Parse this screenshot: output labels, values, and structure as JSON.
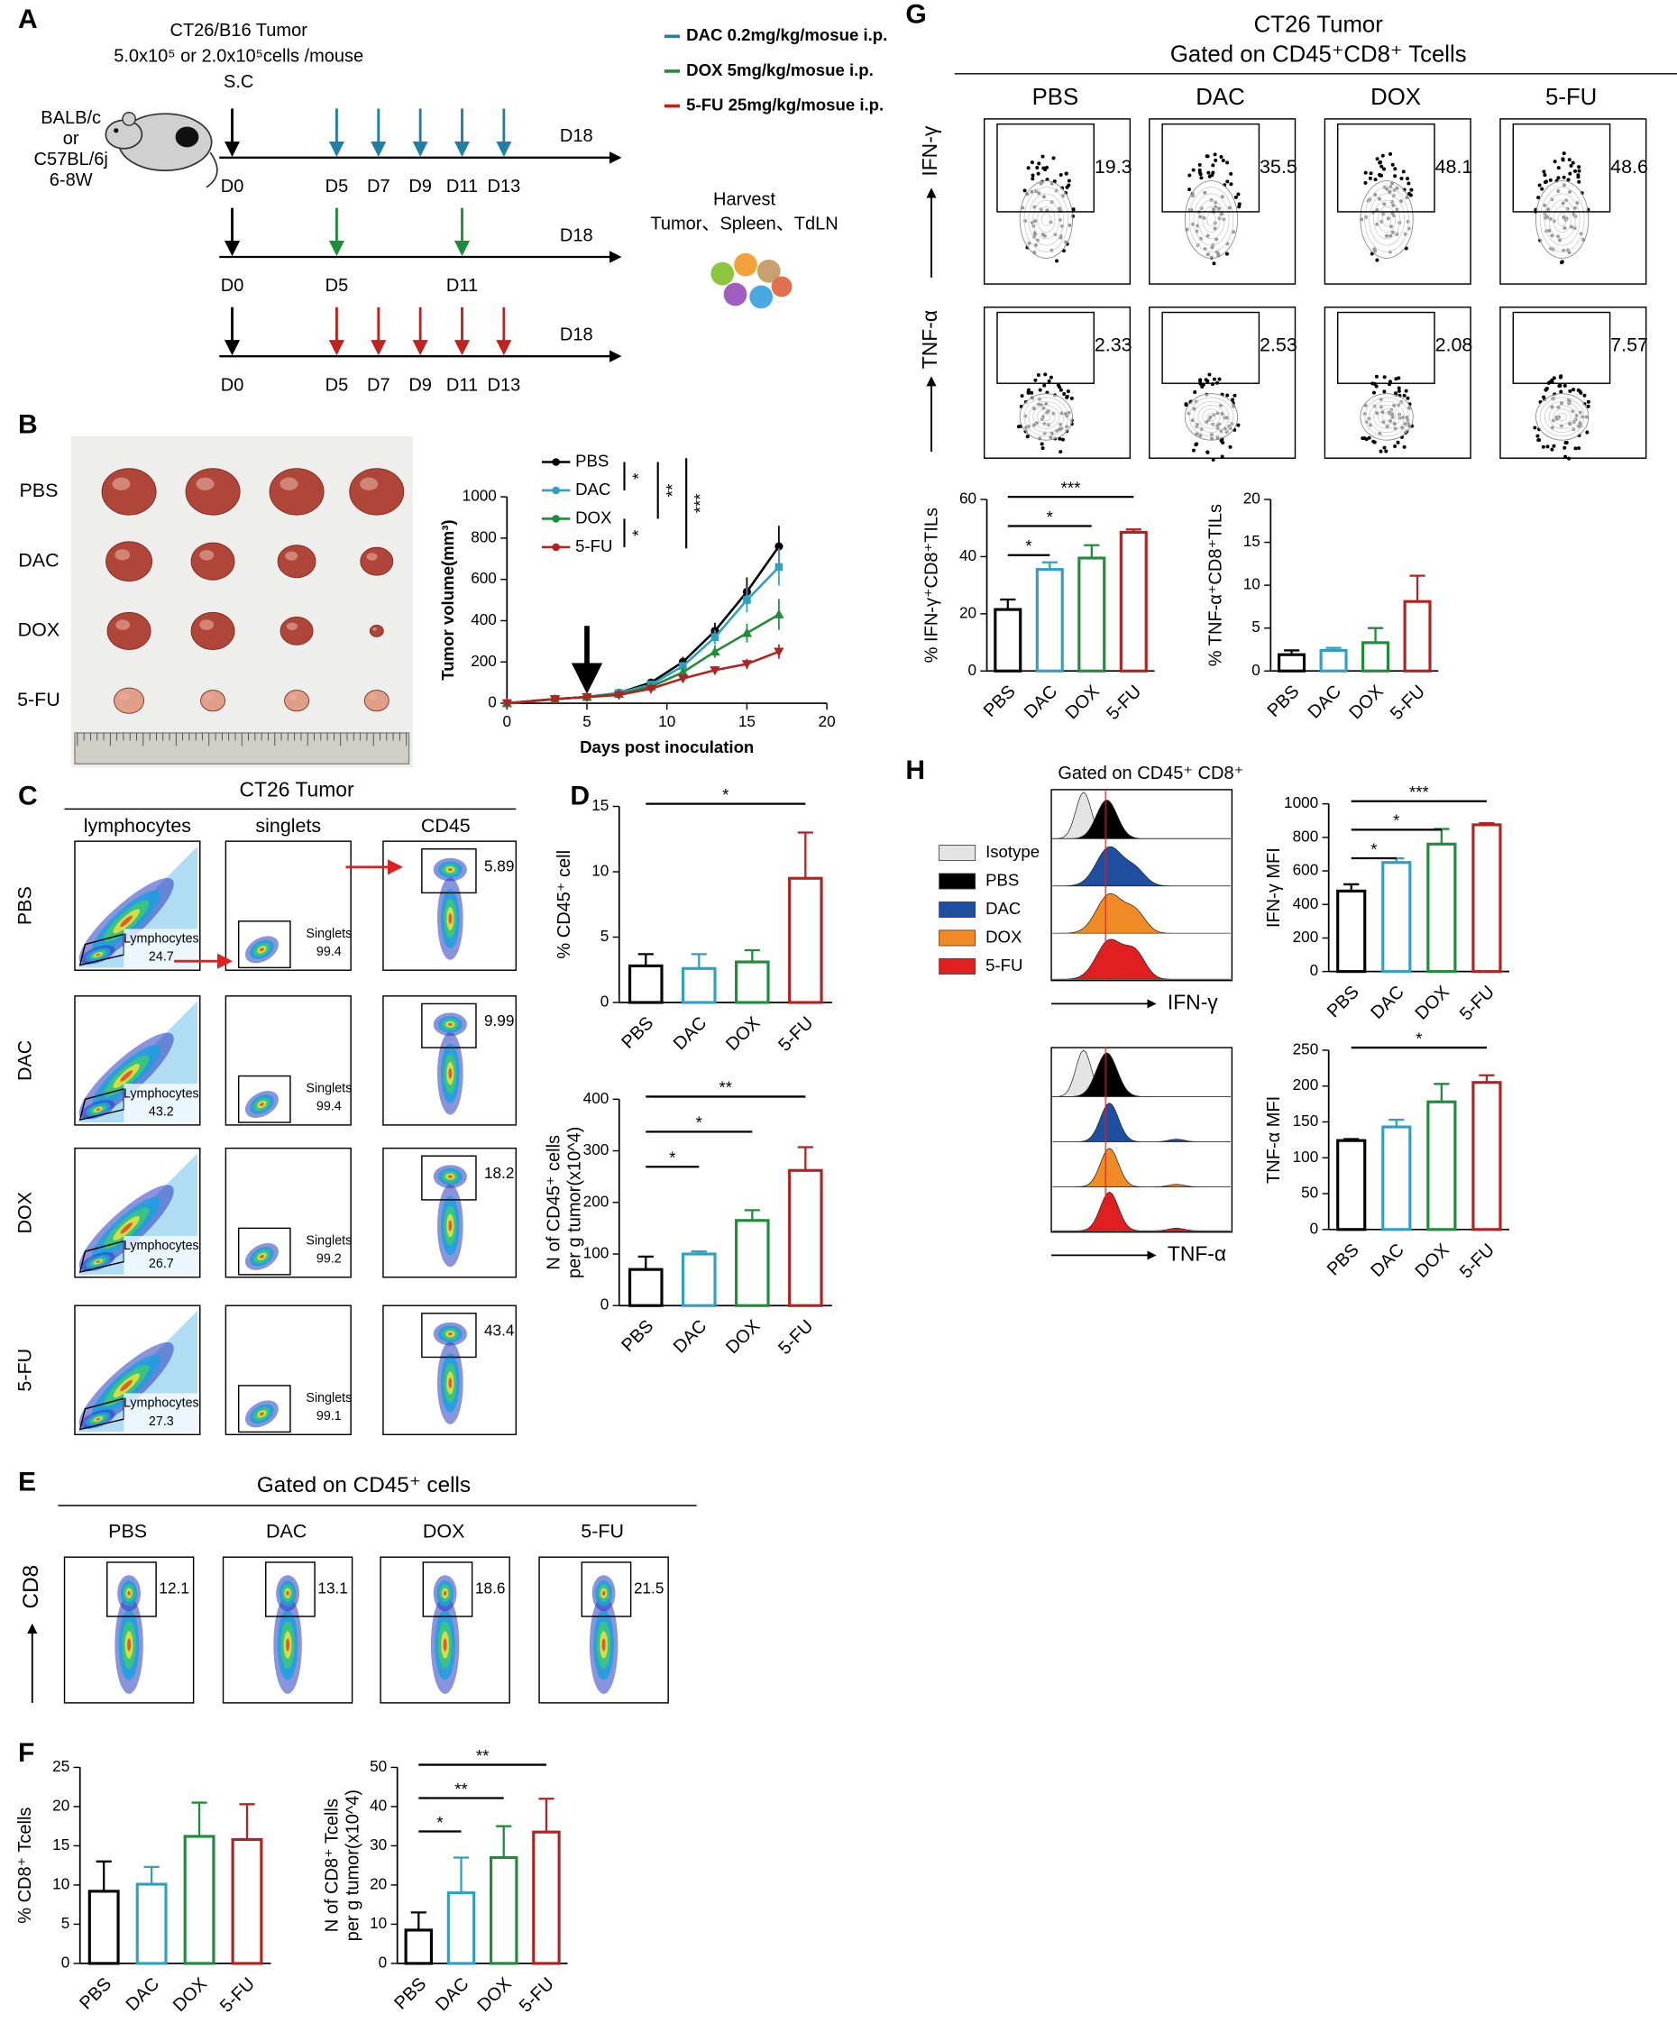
{
  "panel_labels": [
    "A",
    "B",
    "C",
    "D",
    "E",
    "F",
    "G",
    "H"
  ],
  "schema": {
    "tumor_lines": [
      "CT26/B16 Tumor",
      "5.0x10⁵ or 2.0x10⁵cells /mouse",
      "S.C"
    ],
    "strain_lines": [
      "BALB/c",
      "or",
      "C57BL/6j",
      "6-8W"
    ],
    "regimens": [
      {
        "name": "DAC 0.2mg/kg/mosue i.p.",
        "color": "#1f7fa6",
        "days": [
          {
            "value": 0,
            "label": "D0"
          },
          {
            "value": 5,
            "label": "D5"
          },
          {
            "value": 7,
            "label": "D7"
          },
          {
            "value": 9,
            "label": "D9"
          },
          {
            "value": 11,
            "label": "D11"
          },
          {
            "value": 13,
            "label": "D13"
          }
        ],
        "end": {
          "value": 18,
          "label": "D18"
        }
      },
      {
        "name": "DOX 5mg/kg/mosue i.p.",
        "color": "#1e8c3a",
        "days": [
          {
            "value": 0,
            "label": "D0"
          },
          {
            "value": 5,
            "label": "D5"
          },
          {
            "value": 11,
            "label": "D11"
          }
        ],
        "end": {
          "value": 18,
          "label": "D18"
        }
      },
      {
        "name": "5-FU 25mg/kg/mosue i.p.",
        "color": "#c0221e",
        "days": [
          {
            "value": 0,
            "label": "D0"
          },
          {
            "value": 5,
            "label": "D5"
          },
          {
            "value": 7,
            "label": "D7"
          },
          {
            "value": 9,
            "label": "D9"
          },
          {
            "value": 11,
            "label": "D11"
          },
          {
            "value": 13,
            "label": "D13"
          }
        ],
        "end": {
          "value": 18,
          "label": "D18"
        }
      }
    ],
    "harvest": [
      "Harvest",
      "Tumor、Spleen、TdLN"
    ]
  },
  "photo": {
    "groups": [
      "PBS",
      "DAC",
      "DOX",
      "5-FU"
    ]
  },
  "flow_c": {
    "title": "CT26 Tumor",
    "columns": [
      "lymphocytes",
      "singlets",
      "CD45"
    ],
    "groups": [
      "PBS",
      "DAC",
      "DOX",
      "5-FU"
    ],
    "lymphocyte_gate": "Lymphocytes",
    "singlet_gate": "Singlets",
    "lymphocytes": [
      24.7,
      43.2,
      26.7,
      27.3
    ],
    "singlets": [
      99.4,
      99.4,
      99.2,
      99.1
    ],
    "cd45": [
      5.89,
      9.99,
      18.2,
      43.4
    ]
  },
  "flow_e": {
    "title": "Gated on CD45⁺ cells",
    "groups": [
      "PBS",
      "DAC",
      "DOX",
      "5-FU"
    ],
    "axis": "CD8",
    "cd8": [
      12.1,
      13.1,
      18.6,
      21.5
    ]
  },
  "flow_g": {
    "title_lines": [
      "CT26 Tumor",
      "Gated on CD45⁺CD8⁺ Tcells"
    ],
    "groups": [
      "PBS",
      "DAC",
      "DOX",
      "5-FU"
    ],
    "rows": [
      {
        "marker": "IFN-γ",
        "values": [
          19.3,
          35.5,
          48.1,
          48.6
        ]
      },
      {
        "marker": "TNF-α",
        "values": [
          2.33,
          2.53,
          2.08,
          7.57
        ]
      }
    ]
  },
  "hist_h": {
    "title": "Gated on CD45⁺ CD8⁺",
    "legend": [
      {
        "name": "Isotype",
        "color": "#e4e4e4"
      },
      {
        "name": "PBS",
        "color": "#000000"
      },
      {
        "name": "DAC",
        "color": "#1f4fa0"
      },
      {
        "name": "DOX",
        "color": "#f08a24"
      },
      {
        "name": "5-FU",
        "color": "#e02020"
      }
    ],
    "axes": [
      "IFN-γ",
      "TNF-α"
    ]
  },
  "chart_data": [
    {
      "type": "line",
      "ylabel": "Tumor volume(mm³)",
      "xlabel": "Days post inoculation",
      "x": [
        0,
        3,
        5,
        7,
        9,
        11,
        13,
        15,
        17
      ],
      "xlim": [
        0,
        20
      ],
      "xticks": [
        0,
        5,
        10,
        15,
        20
      ],
      "ylim": [
        0,
        1000
      ],
      "yticks": [
        0,
        200,
        400,
        600,
        800,
        1000
      ],
      "series": [
        {
          "name": "PBS",
          "color": "#000000",
          "values": [
            0,
            20,
            30,
            50,
            100,
            200,
            350,
            540,
            760
          ],
          "errors": [
            0,
            5,
            5,
            10,
            15,
            25,
            40,
            70,
            100
          ]
        },
        {
          "name": "DAC",
          "color": "#2fa0c0",
          "values": [
            0,
            20,
            30,
            50,
            90,
            180,
            320,
            500,
            660
          ],
          "errors": [
            0,
            5,
            5,
            10,
            15,
            20,
            35,
            60,
            90
          ]
        },
        {
          "name": "DOX",
          "color": "#1e8c3a",
          "values": [
            0,
            20,
            30,
            45,
            80,
            150,
            250,
            340,
            430
          ],
          "errors": [
            0,
            5,
            5,
            8,
            12,
            20,
            30,
            45,
            75
          ]
        },
        {
          "name": "5-FU",
          "color": "#b22222",
          "values": [
            0,
            20,
            30,
            40,
            70,
            120,
            160,
            190,
            250
          ],
          "errors": [
            0,
            5,
            5,
            8,
            10,
            15,
            20,
            25,
            35
          ]
        }
      ],
      "legend_significance": [
        "*",
        "**",
        "***",
        "*"
      ]
    },
    {
      "type": "bar",
      "ylabel": [
        "% CD45⁺ cell"
      ],
      "categories": [
        "PBS",
        "DAC",
        "DOX",
        "5-FU"
      ],
      "colors": [
        "#000000",
        "#2fa0c0",
        "#1e8c3a",
        "#b22222"
      ],
      "values": [
        2.8,
        2.6,
        3.1,
        9.5
      ],
      "errors": [
        0.9,
        1.1,
        0.9,
        3.5
      ],
      "ylim": [
        0,
        15
      ],
      "yticks": [
        0,
        5,
        10,
        15
      ],
      "significance": [
        {
          "pair": [
            "PBS",
            "5-FU"
          ],
          "label": "*"
        }
      ]
    },
    {
      "type": "bar",
      "ylabel": [
        "N of CD45⁺ cells",
        "per g tumor(x10^4)"
      ],
      "categories": [
        "PBS",
        "DAC",
        "DOX",
        "5-FU"
      ],
      "colors": [
        "#000000",
        "#2fa0c0",
        "#1e8c3a",
        "#b22222"
      ],
      "values": [
        70,
        100,
        165,
        262
      ],
      "errors": [
        25,
        5,
        20,
        45
      ],
      "ylim": [
        0,
        400
      ],
      "yticks": [
        0,
        100,
        200,
        300,
        400
      ],
      "significance": [
        {
          "pair": [
            "PBS",
            "DAC"
          ],
          "label": "*"
        },
        {
          "pair": [
            "PBS",
            "DOX"
          ],
          "label": "*"
        },
        {
          "pair": [
            "PBS",
            "5-FU"
          ],
          "label": "**"
        }
      ]
    },
    {
      "type": "bar",
      "ylabel": [
        "% CD8⁺ Tcells"
      ],
      "categories": [
        "PBS",
        "DAC",
        "DOX",
        "5-FU"
      ],
      "colors": [
        "#000000",
        "#2fa0c0",
        "#1e8c3a",
        "#b22222"
      ],
      "values": [
        9.2,
        10.1,
        16.2,
        15.8
      ],
      "errors": [
        3.8,
        2.2,
        4.3,
        4.5
      ],
      "ylim": [
        0,
        25
      ],
      "yticks": [
        0,
        5,
        10,
        15,
        20,
        25
      ],
      "significance": []
    },
    {
      "type": "bar",
      "ylabel": [
        "N of CD8⁺ Tcells",
        "per g tumor(x10^4)"
      ],
      "categories": [
        "PBS",
        "DAC",
        "DOX",
        "5-FU"
      ],
      "colors": [
        "#000000",
        "#2fa0c0",
        "#1e8c3a",
        "#b22222"
      ],
      "values": [
        8.5,
        18,
        27,
        33.5
      ],
      "errors": [
        4.5,
        9,
        8,
        8.5
      ],
      "ylim": [
        0,
        50
      ],
      "yticks": [
        0,
        10,
        20,
        30,
        40,
        50
      ],
      "significance": [
        {
          "pair": [
            "PBS",
            "DAC"
          ],
          "label": "*"
        },
        {
          "pair": [
            "PBS",
            "DOX"
          ],
          "label": "**"
        },
        {
          "pair": [
            "PBS",
            "5-FU"
          ],
          "label": "**"
        }
      ]
    },
    {
      "type": "bar",
      "ylabel": [
        "% IFN-γ⁺CD8⁺TILs"
      ],
      "categories": [
        "PBS",
        "DAC",
        "DOX",
        "5-FU"
      ],
      "colors": [
        "#000000",
        "#2fa0c0",
        "#1e8c3a",
        "#b22222"
      ],
      "values": [
        21.5,
        35.5,
        39.5,
        48.5
      ],
      "errors": [
        3.5,
        2.5,
        4.5,
        1
      ],
      "ylim": [
        0,
        60
      ],
      "yticks": [
        0,
        20,
        40,
        60
      ],
      "significance": [
        {
          "pair": [
            "PBS",
            "DAC"
          ],
          "label": "*"
        },
        {
          "pair": [
            "PBS",
            "DOX"
          ],
          "label": "*"
        },
        {
          "pair": [
            "PBS",
            "5-FU"
          ],
          "label": "***"
        }
      ]
    },
    {
      "type": "bar",
      "ylabel": [
        "% TNF-α⁺CD8⁺TILs"
      ],
      "categories": [
        "PBS",
        "DAC",
        "DOX",
        "5-FU"
      ],
      "colors": [
        "#000000",
        "#2fa0c0",
        "#1e8c3a",
        "#b22222"
      ],
      "values": [
        1.9,
        2.4,
        3.3,
        8.1
      ],
      "errors": [
        0.5,
        0.3,
        1.7,
        3
      ],
      "ylim": [
        0,
        20
      ],
      "yticks": [
        0,
        5,
        10,
        15,
        20
      ],
      "significance": []
    },
    {
      "type": "bar",
      "ylabel": [
        "IFN-γ MFI"
      ],
      "categories": [
        "PBS",
        "DAC",
        "DOX",
        "5-FU"
      ],
      "colors": [
        "#000000",
        "#2fa0c0",
        "#1e8c3a",
        "#b22222"
      ],
      "values": [
        480,
        650,
        760,
        875
      ],
      "errors": [
        40,
        25,
        90,
        10
      ],
      "ylim": [
        0,
        1000
      ],
      "yticks": [
        0,
        200,
        400,
        600,
        800,
        1000
      ],
      "significance": [
        {
          "pair": [
            "PBS",
            "DAC"
          ],
          "label": "*"
        },
        {
          "pair": [
            "PBS",
            "DOX"
          ],
          "label": "*"
        },
        {
          "pair": [
            "PBS",
            "5-FU"
          ],
          "label": "***"
        }
      ]
    },
    {
      "type": "bar",
      "ylabel": [
        "TNF-α MFI"
      ],
      "categories": [
        "PBS",
        "DAC",
        "DOX",
        "5-FU"
      ],
      "colors": [
        "#000000",
        "#2fa0c0",
        "#1e8c3a",
        "#b22222"
      ],
      "values": [
        124,
        143,
        178,
        205
      ],
      "errors": [
        2,
        10,
        25,
        10
      ],
      "ylim": [
        0,
        250
      ],
      "yticks": [
        0,
        50,
        100,
        150,
        200,
        250
      ],
      "significance": [
        {
          "pair": [
            "PBS",
            "5-FU"
          ],
          "label": "*"
        }
      ]
    }
  ]
}
